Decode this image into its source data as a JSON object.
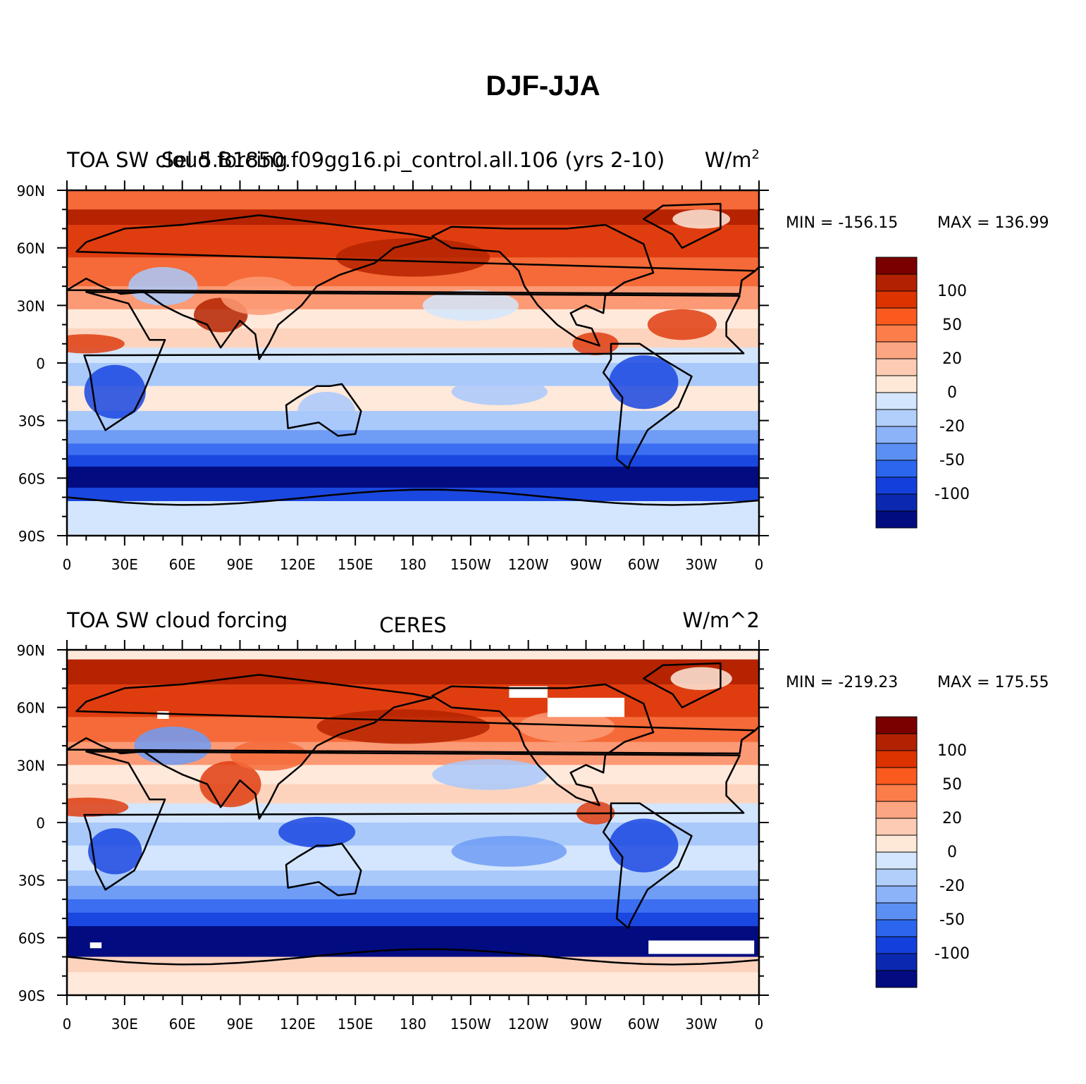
{
  "figure": {
    "title": "DJF-JJA"
  },
  "panels": [
    {
      "id": "model",
      "left_title": "TOA SW cloud forcing",
      "center_title": "Sel 5.B1850.f09gg16.pi_control.all.106 (yrs 2-10)",
      "units": "W/m",
      "units_sup": "2",
      "min_label": "MIN = -156.15",
      "max_label": "MAX = 136.99"
    },
    {
      "id": "obs",
      "left_title": "TOA SW cloud forcing",
      "center_title": "CERES",
      "units": "W/m^2",
      "units_sup": "",
      "min_label": "MIN = -219.23",
      "max_label": "MAX = 175.55"
    }
  ],
  "axes": {
    "lat_labels": [
      "90N",
      "60N",
      "30N",
      "0",
      "30S",
      "60S",
      "90S"
    ],
    "lon_labels": [
      "0",
      "30E",
      "60E",
      "90E",
      "120E",
      "150E",
      "180",
      "150W",
      "120W",
      "90W",
      "60W",
      "30W",
      "0"
    ]
  },
  "colorbar": {
    "labels": [
      "100",
      "50",
      "20",
      "0",
      "-20",
      "-50",
      "-100"
    ],
    "colors": [
      "#7a0000",
      "#b22200",
      "#dd3300",
      "#fa5a1e",
      "#fb7d4a",
      "#fca582",
      "#fdcbb3",
      "#fee8d8",
      "#d4e6fd",
      "#b2cefb",
      "#8cb2f8",
      "#5c8ff2",
      "#2d66ee",
      "#1340dc",
      "#0a28b0",
      "#020c80"
    ]
  },
  "map_colors": {
    "polar_red": "#a8290a",
    "deep_red": "#b52300",
    "red": "#df3d10",
    "orange": "#f56a38",
    "salmon": "#fb9a75",
    "peach": "#fdd3bd",
    "cream": "#fee9db",
    "pale_blue": "#d4e6fd",
    "light_blue": "#a9c9fb",
    "blue": "#6f9cf4",
    "mid_blue": "#3b6ef0",
    "strong_blue": "#1a47e0",
    "deep_blue": "#0a27b0",
    "navy": "#020c80",
    "land": "#000000"
  }
}
